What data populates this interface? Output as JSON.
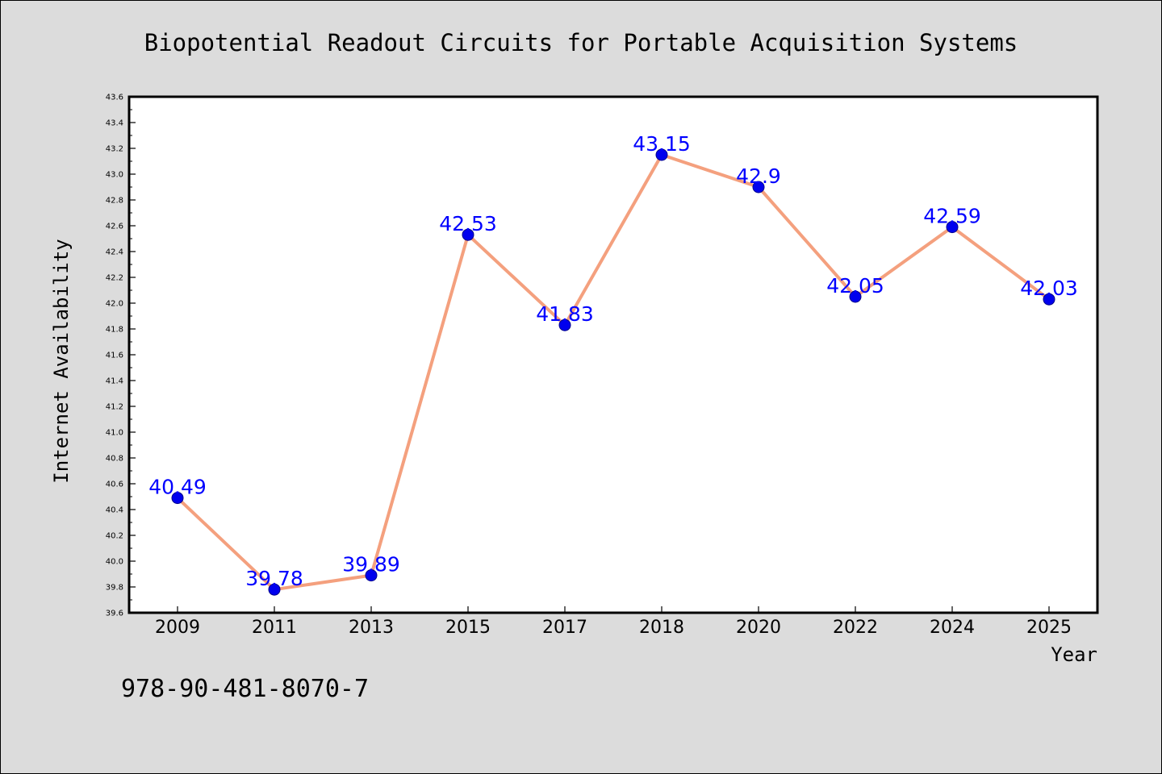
{
  "footer": {
    "isbn": "978-90-481-8070-7"
  },
  "colors": {
    "background": "#dcdcdc",
    "plot_bg": "#ffffff",
    "line": "#f4a07e",
    "marker": "#0000ee",
    "label": "#0000ff"
  },
  "chart_data": {
    "type": "line",
    "title": "Biopotential Readout Circuits for Portable Acquisition Systems",
    "xlabel": "Year",
    "ylabel": "Internet Availability",
    "categories": [
      "2009",
      "2011",
      "2013",
      "2015",
      "2017",
      "2018",
      "2020",
      "2022",
      "2024",
      "2025"
    ],
    "series": [
      {
        "values": [
          40.49,
          39.78,
          39.89,
          42.53,
          41.83,
          43.15,
          42.9,
          42.05,
          42.59,
          42.03
        ]
      }
    ],
    "data_labels": [
      "40.49",
      "39.78",
      "39.89",
      "42.53",
      "41.83",
      "43.15",
      "42.9",
      "42.05",
      "42.59",
      "42.03"
    ],
    "ylim": [
      39.6,
      43.6
    ],
    "ytick_labels": [
      "39.6",
      "39.8",
      "40.0",
      "40.2",
      "40.4",
      "40.6",
      "40.8",
      "41.0",
      "41.2",
      "41.4",
      "41.6",
      "41.8",
      "42.0",
      "42.2",
      "42.4",
      "42.6",
      "42.8",
      "43.0",
      "43.2",
      "43.4",
      "43.6"
    ],
    "grid": false,
    "legend": "none"
  }
}
